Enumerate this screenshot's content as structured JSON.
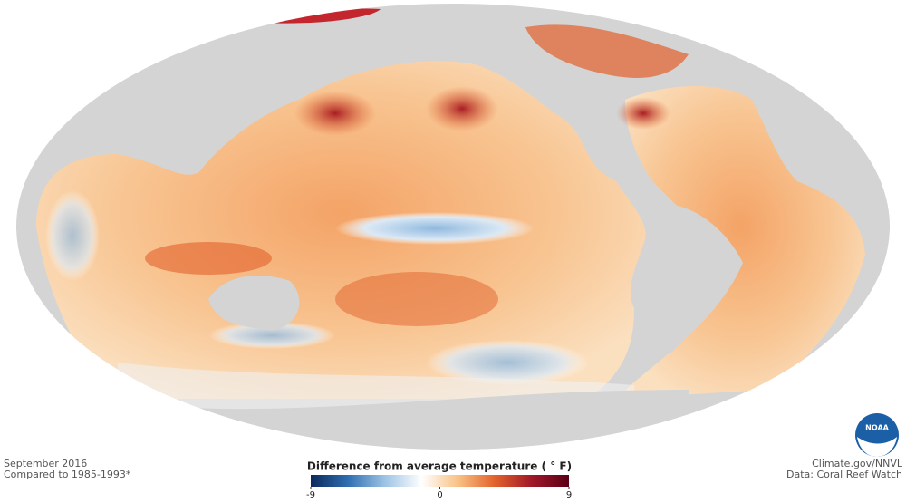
{
  "caption": {
    "date": "September 2016",
    "baseline": "Compared to 1985-1993*"
  },
  "credits": {
    "source": "Climate.gov/NNVL",
    "data": "Data: Coral Reef Watch"
  },
  "logo_text": "NOAA",
  "colorbar": {
    "title": "Difference from average temperature ( ° F)",
    "lim": [
      -9,
      9
    ],
    "ticks": [
      -9,
      0,
      9
    ],
    "colors": [
      "#0b2a5c",
      "#2f6db0",
      "#9cc3e4",
      "#ffffff",
      "#f9c184",
      "#e2612b",
      "#a0172a",
      "#5a0016"
    ]
  }
}
